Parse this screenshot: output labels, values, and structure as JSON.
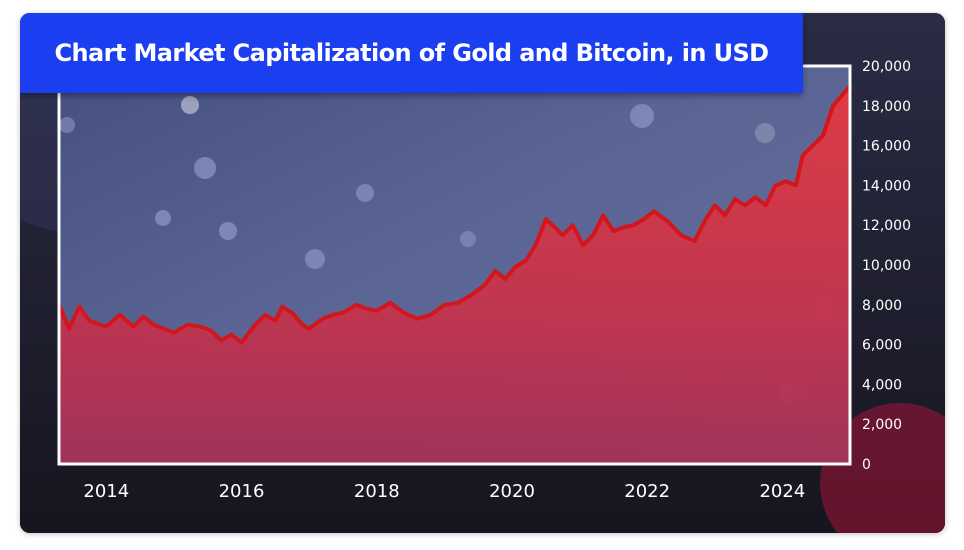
{
  "chart_data": {
    "type": "area",
    "title": "Chart Market Capitalization of Gold and Bitcoin, in USD",
    "xlabel": "",
    "ylabel": "",
    "x_ticks": [
      "2014",
      "2016",
      "2018",
      "2020",
      "2022",
      "2024"
    ],
    "x_tick_values": [
      2014,
      2016,
      2018,
      2020,
      2022,
      2024
    ],
    "y_ticks": [
      "0",
      "2,000",
      "4,000",
      "6,000",
      "8,000",
      "10,000",
      "12,000",
      "14,000",
      "16,000",
      "18,000",
      "20,000"
    ],
    "y_tick_values": [
      0,
      2000,
      4000,
      6000,
      8000,
      10000,
      12000,
      14000,
      16000,
      18000,
      20000
    ],
    "xlim": [
      2013.3,
      2025.0
    ],
    "ylim": [
      0,
      20000
    ],
    "grid": false,
    "legend": "none",
    "series": [
      {
        "color": "#d3161b",
        "x": [
          2013.3,
          2013.45,
          2013.6,
          2013.75,
          2014.0,
          2014.2,
          2014.4,
          2014.55,
          2014.7,
          2014.85,
          2015.0,
          2015.2,
          2015.4,
          2015.55,
          2015.7,
          2015.85,
          2016.0,
          2016.2,
          2016.35,
          2016.5,
          2016.6,
          2016.75,
          2016.9,
          2017.0,
          2017.2,
          2017.35,
          2017.5,
          2017.7,
          2017.85,
          2018.0,
          2018.2,
          2018.4,
          2018.6,
          2018.8,
          2019.0,
          2019.2,
          2019.4,
          2019.6,
          2019.75,
          2019.9,
          2020.05,
          2020.2,
          2020.35,
          2020.5,
          2020.6,
          2020.75,
          2020.9,
          2021.05,
          2021.2,
          2021.35,
          2021.5,
          2021.65,
          2021.8,
          2021.95,
          2022.1,
          2022.3,
          2022.5,
          2022.7,
          2022.85,
          2023.0,
          2023.15,
          2023.3,
          2023.45,
          2023.6,
          2023.75,
          2023.9,
          2024.05,
          2024.2,
          2024.3,
          2024.45,
          2024.6,
          2024.75,
          2024.9,
          2025.0
        ],
        "values": [
          8000,
          6800,
          7900,
          7200,
          6900,
          7500,
          6900,
          7400,
          7000,
          6800,
          6600,
          7000,
          6900,
          6700,
          6200,
          6500,
          6100,
          7000,
          7500,
          7200,
          7900,
          7600,
          7000,
          6800,
          7300,
          7500,
          7600,
          8000,
          7800,
          7700,
          8100,
          7600,
          7300,
          7500,
          8000,
          8100,
          8500,
          9000,
          9700,
          9300,
          9900,
          10200,
          11000,
          12300,
          12000,
          11500,
          12000,
          11000,
          11500,
          12500,
          11700,
          11900,
          12000,
          12300,
          12700,
          12200,
          11500,
          11200,
          12200,
          13000,
          12500,
          13300,
          13000,
          13400,
          13000,
          14000,
          14200,
          14000,
          15500,
          16000,
          16500,
          18000,
          18600,
          19000
        ]
      }
    ]
  }
}
